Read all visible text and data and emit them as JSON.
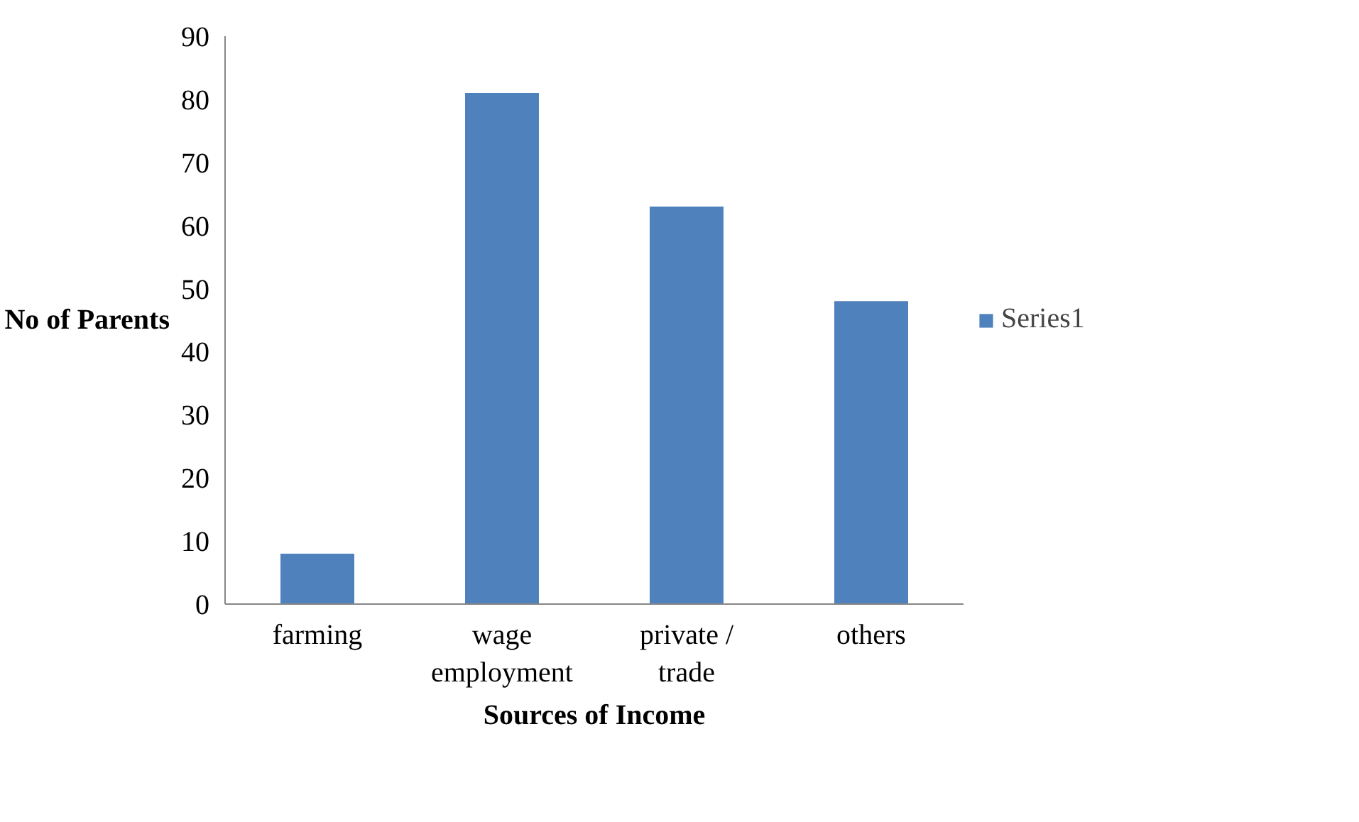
{
  "chart_data": {
    "type": "bar",
    "xlabel": "Sources of Income",
    "ylabel": "No of Parents",
    "categories": [
      "farming",
      "wage\nemployment",
      "private /\ntrade",
      "others"
    ],
    "series": [
      {
        "name": "Series1",
        "color": "#4f81bd",
        "values": [
          8,
          81,
          63,
          48
        ]
      }
    ],
    "ylim": [
      0,
      90
    ],
    "yticks": [
      0,
      10,
      20,
      30,
      40,
      50,
      60,
      70,
      80,
      90
    ],
    "grid": false,
    "legend": "right"
  }
}
